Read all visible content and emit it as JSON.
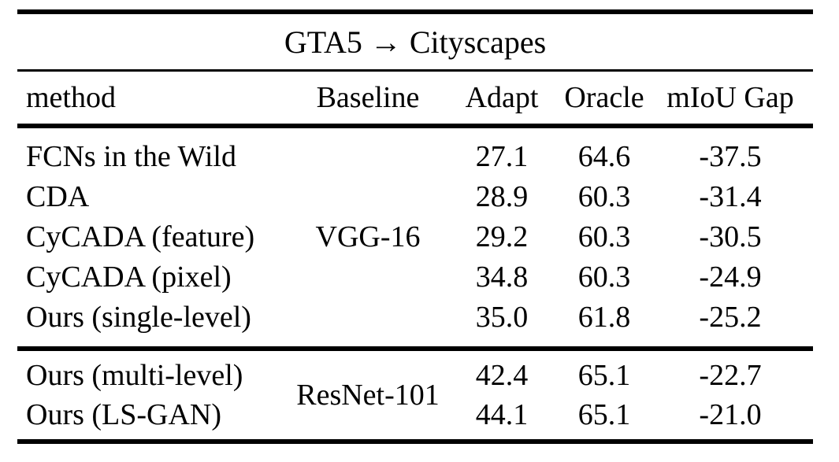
{
  "table": {
    "title": "GTA5 → Cityscapes",
    "headers": {
      "method": "method",
      "baseline": "Baseline",
      "adapt": "Adapt",
      "oracle": "Oracle",
      "gap": "mIoU Gap"
    },
    "groups": [
      {
        "baseline": "VGG-16",
        "rows": [
          {
            "method": "FCNs in the Wild",
            "adapt": "27.1",
            "oracle": "64.6",
            "gap": "-37.5"
          },
          {
            "method": "CDA",
            "adapt": "28.9",
            "oracle": "60.3",
            "gap": "-31.4"
          },
          {
            "method": "CyCADA (feature)",
            "adapt": "29.2",
            "oracle": "60.3",
            "gap": "-30.5"
          },
          {
            "method": "CyCADA (pixel)",
            "adapt": "34.8",
            "oracle": "60.3",
            "gap": "-24.9"
          },
          {
            "method": "Ours (single-level)",
            "adapt": "35.0",
            "oracle": "61.8",
            "gap": "-25.2"
          }
        ]
      },
      {
        "baseline": "ResNet-101",
        "rows": [
          {
            "method": "Ours (multi-level)",
            "adapt": "42.4",
            "oracle": "65.1",
            "gap": "-22.7"
          },
          {
            "method": "Ours (LS-GAN)",
            "adapt": "44.1",
            "oracle": "65.1",
            "gap": "-21.0"
          }
        ]
      }
    ],
    "colors": {
      "text": "#000000",
      "background": "#ffffff",
      "rule": "#000000"
    }
  }
}
